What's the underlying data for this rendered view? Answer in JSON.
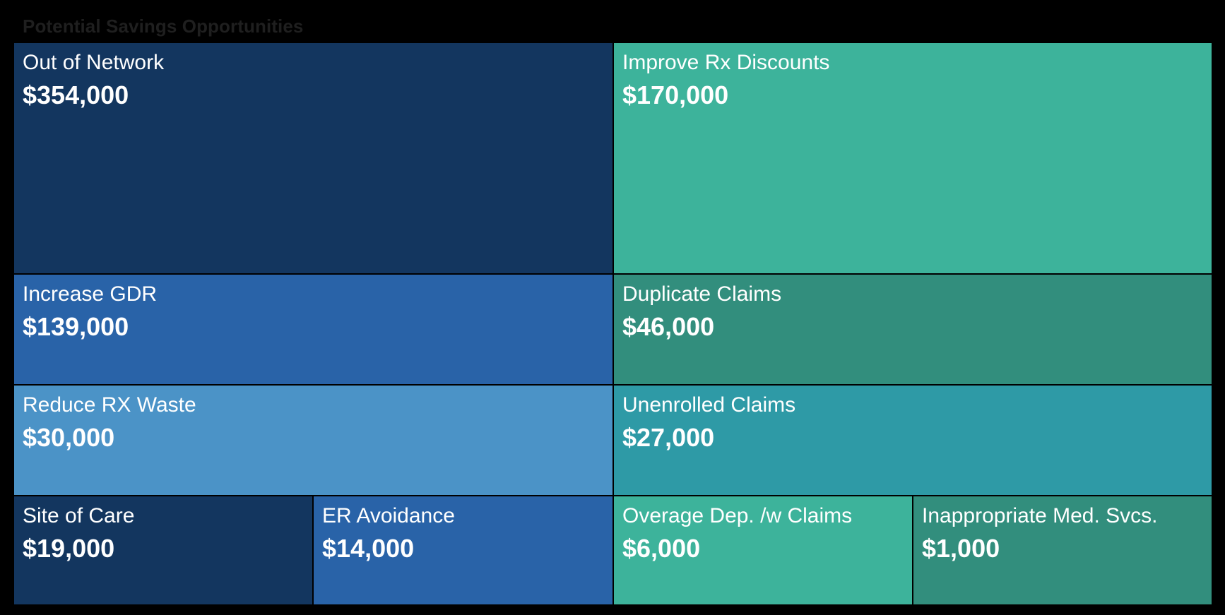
{
  "chart_data": {
    "type": "treemap",
    "title": "Potential Savings Opportunities",
    "cells": [
      {
        "label": "Out of Network",
        "value_text": "$354,000",
        "value": 354000,
        "color": "#13365f"
      },
      {
        "label": "Improve Rx Discounts",
        "value_text": "$170,000",
        "value": 170000,
        "color": "#3db39b"
      },
      {
        "label": "Increase GDR",
        "value_text": "$139,000",
        "value": 139000,
        "color": "#2963a8"
      },
      {
        "label": "Duplicate Claims",
        "value_text": "$46,000",
        "value": 46000,
        "color": "#328e7d"
      },
      {
        "label": "Reduce RX Waste",
        "value_text": "$30,000",
        "value": 30000,
        "color": "#4b93c7"
      },
      {
        "label": "Unenrolled Claims",
        "value_text": "$27,000",
        "value": 27000,
        "color": "#2e9aa6"
      },
      {
        "label": "Site of Care",
        "value_text": "$19,000",
        "value": 19000,
        "color": "#13365f"
      },
      {
        "label": "ER Avoidance",
        "value_text": "$14,000",
        "value": 14000,
        "color": "#2963a8"
      },
      {
        "label": "Overage Dep. /w Claims",
        "value_text": "$6,000",
        "value": 6000,
        "color": "#3db39b"
      },
      {
        "label": "Inappropriate Med. Svcs.",
        "value_text": "$1,000",
        "value": 1000,
        "color": "#328e7d"
      }
    ]
  }
}
